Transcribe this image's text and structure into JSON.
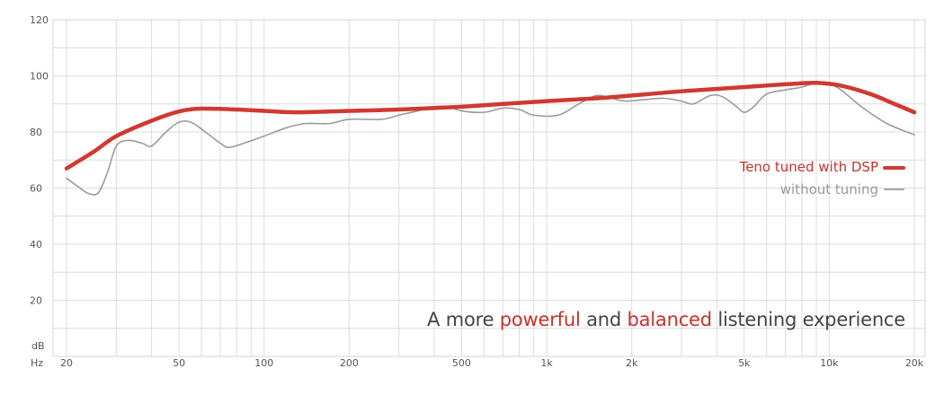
{
  "chart_data": {
    "type": "line",
    "title": "",
    "xlabel": "Hz",
    "ylabel": "dB",
    "x_scale": "log",
    "xlim": [
      20,
      20000
    ],
    "ylim": [
      0,
      120
    ],
    "x_ticks": [
      20,
      50,
      100,
      200,
      500,
      1000,
      2000,
      5000,
      10000,
      20000
    ],
    "x_tick_labels": [
      "20",
      "50",
      "100",
      "200",
      "500",
      "1k",
      "2k",
      "5k",
      "10k",
      "20k"
    ],
    "y_ticks": [
      20,
      40,
      60,
      80,
      100,
      120
    ],
    "y_tick_labels": [
      "20",
      "40",
      "60",
      "80",
      "100",
      "120"
    ],
    "grid": true,
    "legend_position": "right",
    "series": [
      {
        "name": "Teno tuned with DSP",
        "color": "#d0392f",
        "points": [
          [
            20,
            67
          ],
          [
            25,
            73
          ],
          [
            30,
            78.5
          ],
          [
            40,
            84
          ],
          [
            50,
            87.3
          ],
          [
            60,
            88.3
          ],
          [
            80,
            88
          ],
          [
            100,
            87.5
          ],
          [
            130,
            87
          ],
          [
            200,
            87.5
          ],
          [
            300,
            88
          ],
          [
            500,
            89
          ],
          [
            700,
            90
          ],
          [
            1000,
            91
          ],
          [
            1500,
            92
          ],
          [
            2000,
            93
          ],
          [
            3000,
            94.5
          ],
          [
            5000,
            96
          ],
          [
            7000,
            97
          ],
          [
            9000,
            97.5
          ],
          [
            11000,
            96.5
          ],
          [
            14000,
            93.5
          ],
          [
            17000,
            90
          ],
          [
            20000,
            87
          ]
        ]
      },
      {
        "name": "without tuning",
        "color": "#9b9b9b",
        "points": [
          [
            20,
            63.5
          ],
          [
            22,
            60.5
          ],
          [
            24,
            58
          ],
          [
            26,
            58.5
          ],
          [
            28,
            66
          ],
          [
            30,
            75
          ],
          [
            33,
            77
          ],
          [
            37,
            76
          ],
          [
            40,
            75
          ],
          [
            45,
            80
          ],
          [
            50,
            83.5
          ],
          [
            55,
            83.5
          ],
          [
            62,
            80
          ],
          [
            70,
            76
          ],
          [
            75,
            74.5
          ],
          [
            85,
            76
          ],
          [
            100,
            78.5
          ],
          [
            120,
            81.5
          ],
          [
            140,
            83
          ],
          [
            170,
            83
          ],
          [
            200,
            84.5
          ],
          [
            260,
            84.5
          ],
          [
            300,
            86
          ],
          [
            350,
            87.5
          ],
          [
            400,
            89
          ],
          [
            450,
            89
          ],
          [
            500,
            87.5
          ],
          [
            600,
            87
          ],
          [
            700,
            88.5
          ],
          [
            800,
            88
          ],
          [
            900,
            86
          ],
          [
            1100,
            86
          ],
          [
            1300,
            90
          ],
          [
            1500,
            93
          ],
          [
            1700,
            92
          ],
          [
            1900,
            91
          ],
          [
            2200,
            91.5
          ],
          [
            2600,
            92
          ],
          [
            3000,
            91
          ],
          [
            3300,
            90
          ],
          [
            3800,
            93
          ],
          [
            4200,
            92.5
          ],
          [
            4700,
            89
          ],
          [
            5000,
            87
          ],
          [
            5400,
            89
          ],
          [
            6000,
            93.5
          ],
          [
            7000,
            95
          ],
          [
            8000,
            96
          ],
          [
            9000,
            97.5
          ],
          [
            10000,
            97
          ],
          [
            11000,
            95
          ],
          [
            13000,
            89
          ],
          [
            16000,
            83
          ],
          [
            20000,
            79
          ]
        ]
      }
    ],
    "caption": {
      "prefix": "A more ",
      "hl1": "powerful",
      "middle": " and ",
      "hl2": "balanced",
      "suffix": " listening experience"
    }
  }
}
